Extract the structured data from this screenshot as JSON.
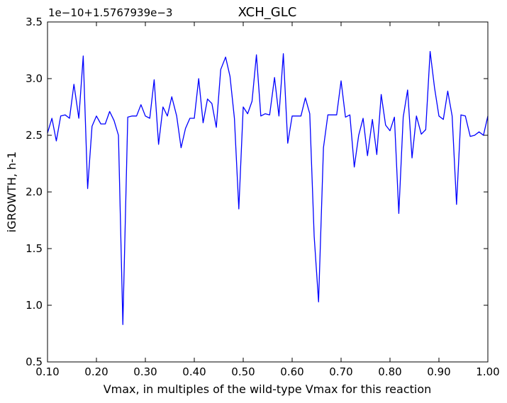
{
  "chart_data": {
    "type": "line",
    "title": "XCH_GLC",
    "xlabel": "Vmax, in multiples of the wild-type Vmax for this reaction",
    "ylabel": "iGROWTH, h-1",
    "y_offset_text": "1e−10+1.5767939e−3",
    "xlim": [
      0.1,
      1.0
    ],
    "ylim": [
      0.5,
      3.5
    ],
    "x_ticks": [
      "0.10",
      "0.20",
      "0.30",
      "0.40",
      "0.50",
      "0.60",
      "0.70",
      "0.80",
      "0.90",
      "1.00"
    ],
    "y_ticks": [
      "0.5",
      "1.0",
      "1.5",
      "2.0",
      "2.5",
      "3.0",
      "3.5"
    ],
    "grid": false,
    "line_color": "#0000ff",
    "series": [
      {
        "x": [
          0.1,
          0.109,
          0.118,
          0.127,
          0.136,
          0.145,
          0.154,
          0.164,
          0.173,
          0.182,
          0.191,
          0.2,
          0.209,
          0.218,
          0.227,
          0.236,
          0.245,
          0.254,
          0.264,
          0.273,
          0.282,
          0.291,
          0.3,
          0.309,
          0.318,
          0.327,
          0.336,
          0.345,
          0.354,
          0.364,
          0.373,
          0.382,
          0.391,
          0.4,
          0.409,
          0.418,
          0.427,
          0.436,
          0.445,
          0.454,
          0.464,
          0.473,
          0.482,
          0.491,
          0.5,
          0.509,
          0.518,
          0.527,
          0.536,
          0.545,
          0.554,
          0.564,
          0.573,
          0.582,
          0.591,
          0.6,
          0.609,
          0.618,
          0.627,
          0.636,
          0.645,
          0.654,
          0.664,
          0.673,
          0.682,
          0.691,
          0.7,
          0.709,
          0.718,
          0.727,
          0.736,
          0.745,
          0.754,
          0.764,
          0.773,
          0.782,
          0.791,
          0.8,
          0.809,
          0.818,
          0.827,
          0.836,
          0.845,
          0.854,
          0.864,
          0.873,
          0.882,
          0.891,
          0.9,
          0.909,
          0.918,
          0.927,
          0.936,
          0.945,
          0.954,
          0.964,
          0.973,
          0.982,
          0.991,
          1.0
        ],
        "values": [
          2.52,
          2.65,
          2.45,
          2.67,
          2.68,
          2.65,
          2.95,
          2.65,
          3.2,
          2.03,
          2.58,
          2.67,
          2.6,
          2.6,
          2.71,
          2.63,
          2.5,
          0.83,
          2.66,
          2.67,
          2.67,
          2.77,
          2.67,
          2.65,
          2.99,
          2.42,
          2.75,
          2.67,
          2.84,
          2.67,
          2.39,
          2.56,
          2.65,
          2.65,
          3.0,
          2.61,
          2.82,
          2.78,
          2.57,
          3.08,
          3.19,
          3.02,
          2.65,
          1.85,
          2.75,
          2.69,
          2.8,
          3.21,
          2.67,
          2.69,
          2.68,
          3.01,
          2.67,
          3.22,
          2.43,
          2.67,
          2.67,
          2.67,
          2.83,
          2.69,
          1.61,
          1.03,
          2.39,
          2.68,
          2.68,
          2.68,
          2.98,
          2.66,
          2.68,
          2.22,
          2.5,
          2.65,
          2.32,
          2.64,
          2.33,
          2.86,
          2.59,
          2.54,
          2.66,
          1.81,
          2.66,
          2.9,
          2.3,
          2.67,
          2.51,
          2.55,
          3.24,
          2.92,
          2.67,
          2.64,
          2.89,
          2.67,
          1.89,
          2.68,
          2.67,
          2.49,
          2.5,
          2.53,
          2.5,
          2.67
        ]
      }
    ]
  }
}
